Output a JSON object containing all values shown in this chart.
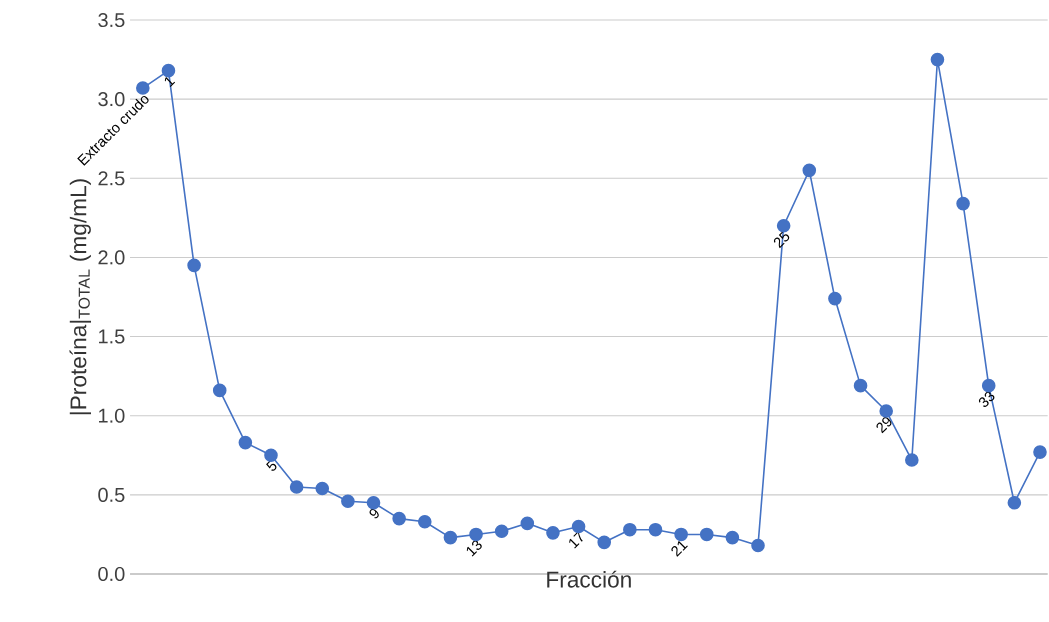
{
  "chart_data": {
    "type": "line",
    "xlabel": "Fracción",
    "ylabel": "|Proteína|$_{TOTAL}$ (mg/mL)",
    "categories": [
      "Extracto crudo",
      "1",
      null,
      null,
      null,
      "5",
      null,
      null,
      null,
      "9",
      null,
      null,
      null,
      "13",
      null,
      null,
      null,
      "17",
      null,
      null,
      null,
      "21",
      null,
      null,
      null,
      "25",
      null,
      null,
      null,
      "29",
      null,
      null,
      null,
      "33",
      null,
      null
    ],
    "values": [
      3.07,
      3.18,
      1.95,
      1.16,
      0.83,
      0.75,
      0.55,
      0.54,
      0.46,
      0.45,
      0.35,
      0.33,
      0.23,
      0.25,
      0.27,
      0.32,
      0.26,
      0.3,
      0.2,
      0.28,
      0.28,
      0.25,
      0.25,
      0.23,
      0.18,
      2.2,
      2.55,
      1.74,
      1.19,
      1.03,
      0.72,
      3.25,
      2.34,
      1.19,
      0.45,
      0.77
    ],
    "color": "#4472c4",
    "marker": "circle",
    "line_style": "solid",
    "grid": "y",
    "ylim": [
      0,
      3.5
    ],
    "yticks": [
      {
        "value": 0,
        "label": "0.0"
      },
      {
        "value": 0.5,
        "label": "0.5"
      },
      {
        "value": 1,
        "label": "1.0"
      },
      {
        "value": 1.5,
        "label": "1.5"
      },
      {
        "value": 2,
        "label": "2.0"
      },
      {
        "value": 2.5,
        "label": "2.5"
      },
      {
        "value": 3,
        "label": "3.0"
      },
      {
        "value": 3.5,
        "label": "3.5"
      }
    ]
  }
}
